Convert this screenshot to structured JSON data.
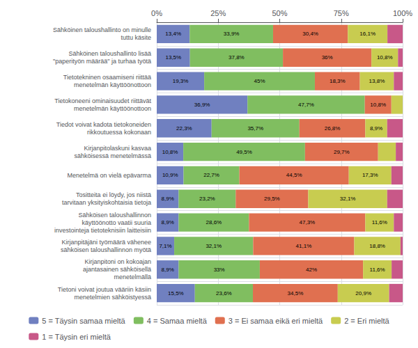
{
  "chart_data": {
    "type": "bar",
    "orientation": "horizontal",
    "stacked": true,
    "grid": true,
    "legend": "bottom",
    "data_labels": true,
    "categories": [
      "Sähköinen taloushallinto on minulle\ntuttu käsite",
      "Sähköinen taloushallinto lisää\n\"paperityön määrää\" ja turhaa työtä",
      "Tietotekninen osaamiseni riittää\nmenetelmän käyttöönottoon",
      "Tietokoneeni ominaisuudet riittävät\nmenetelmän käyttöönottoon",
      "Tiedot voivat kadota tietokoneiden\nrikkoutuessa kokonaan",
      "Kirjanpitolaskuni kasvaa\nsähköisessä menetelmässä",
      "Menetelmä on vielä epävarma",
      "Tositteita ei löydy, jos niistä\ntarvitaan yksityiskohtaisia tietoja",
      "Sähköisen taloushallinnon\nkäyttöönotto vaatii suuria\ninvestointeja tietoteknisiin laitteisiin",
      "Kirjanpitäjäni työmäärä vähenee\nsähköisen taloushallinnon myötä",
      "Kirjanpitoni on kokoajan\najantasainen sähköisellä\nmenetelmällä",
      "Tietoni voivat joutua vääriin käsiin\nmenetelmien sähköistyessä"
    ],
    "series": [
      {
        "name": "5 = Täysin samaa mieltä",
        "color": "#7080c0",
        "values": [
          13.4,
          13.5,
          19.3,
          36.9,
          22.3,
          10.8,
          10.9,
          8.9,
          8.9,
          7.1,
          8.9,
          15.5
        ],
        "value_labels": [
          "13,4%",
          "13,5%",
          "19,3%",
          "36,9%",
          "22,3%",
          "10,8%",
          "10,9%",
          "8,9%",
          "8,9%",
          "7,1%",
          "8,9%",
          "15,5%"
        ]
      },
      {
        "name": "4 = Samaa mieltä",
        "color": "#80be60",
        "values": [
          33.9,
          37.8,
          45.0,
          47.7,
          35.7,
          49.5,
          22.7,
          23.2,
          28.6,
          32.1,
          33.0,
          23.6
        ],
        "value_labels": [
          "33,9%",
          "37,8%",
          "45%",
          "47,7%",
          "35,7%",
          "49,5%",
          "22,7%",
          "23,2%",
          "28,6%",
          "32,1%",
          "33%",
          "23,6%"
        ]
      },
      {
        "name": "3 = Ei samaa eikä eri mieltä",
        "color": "#e07050",
        "values": [
          30.4,
          36.0,
          18.3,
          10.8,
          26.8,
          29.7,
          44.5,
          29.5,
          47.3,
          41.1,
          42.0,
          34.5
        ],
        "value_labels": [
          "30,4%",
          "36%",
          "18,3%",
          "10,8%",
          "26,8%",
          "29,7%",
          "44,5%",
          "29,5%",
          "47,3%",
          "41,1%",
          "42%",
          "34,5%"
        ]
      },
      {
        "name": "2 = Eri mieltä",
        "color": "#c8cc50",
        "values": [
          16.1,
          10.8,
          13.8,
          4.6,
          8.9,
          7.2,
          17.3,
          32.1,
          11.6,
          18.8,
          11.6,
          20.9
        ],
        "value_labels": [
          "16,1%",
          "10,8%",
          "13,8%",
          null,
          "8,9%",
          null,
          "17,3%",
          "32,1%",
          "11,6%",
          "18,8%",
          "11,6%",
          "20,9%"
        ]
      },
      {
        "name": "1 = Täysin eri mieltä",
        "color": "#c85888",
        "values": [
          6.2,
          1.9,
          3.6,
          0.0,
          6.3,
          2.8,
          4.6,
          6.3,
          3.6,
          0.9,
          4.5,
          5.5
        ],
        "value_labels": [
          null,
          null,
          null,
          null,
          null,
          null,
          null,
          null,
          null,
          null,
          null,
          null
        ]
      }
    ],
    "xlim": [
      0,
      100
    ],
    "xticks": [
      {
        "value": 0,
        "label": "0%"
      },
      {
        "value": 25,
        "label": "25%"
      },
      {
        "value": 50,
        "label": "50%"
      },
      {
        "value": 75,
        "label": "75%"
      },
      {
        "value": 100,
        "label": "100%"
      }
    ]
  }
}
